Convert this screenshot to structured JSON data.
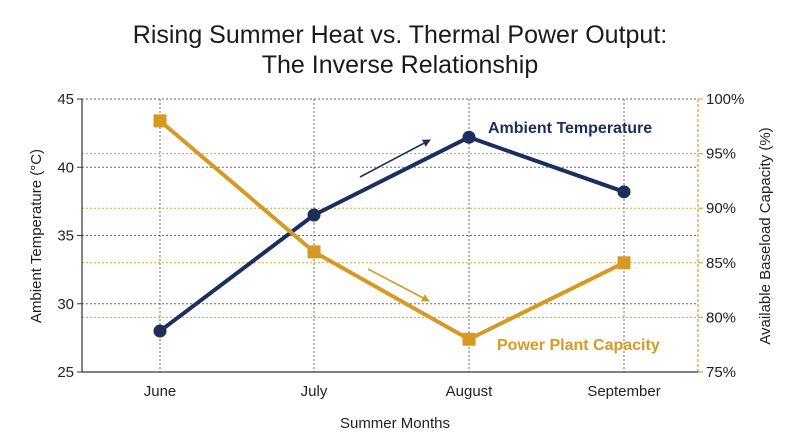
{
  "chart_data": {
    "type": "line",
    "title": [
      "Rising Summer Heat vs. Thermal Power Output:",
      "The Inverse Relationship"
    ],
    "xlabel": "Summer Months",
    "ylabel_left": "Ambient Temperature (°C)",
    "ylabel_right": "Available Baseload Capacity (%)",
    "categories": [
      "June",
      "July",
      "August",
      "September"
    ],
    "left_axis": {
      "min": 25,
      "max": 45,
      "ticks": [
        25,
        30,
        35,
        40,
        45
      ],
      "tick_labels": [
        "25",
        "30",
        "35",
        "40",
        "45"
      ]
    },
    "right_axis": {
      "min": 75,
      "max": 100,
      "ticks": [
        75,
        80,
        85,
        90,
        95,
        100
      ],
      "tick_labels": [
        "75%",
        "80%",
        "85%",
        "90%",
        "95%",
        "100%"
      ]
    },
    "grid": true,
    "series": [
      {
        "name": "Ambient Temperature",
        "axis": "left",
        "color": "#1b2f5e",
        "marker": "circle",
        "values": [
          28,
          36.5,
          42.2,
          38.2
        ]
      },
      {
        "name": "Power Plant Capacity",
        "axis": "right",
        "color": "#d69a24",
        "marker": "square",
        "values": [
          98,
          86,
          78,
          85
        ]
      }
    ]
  }
}
